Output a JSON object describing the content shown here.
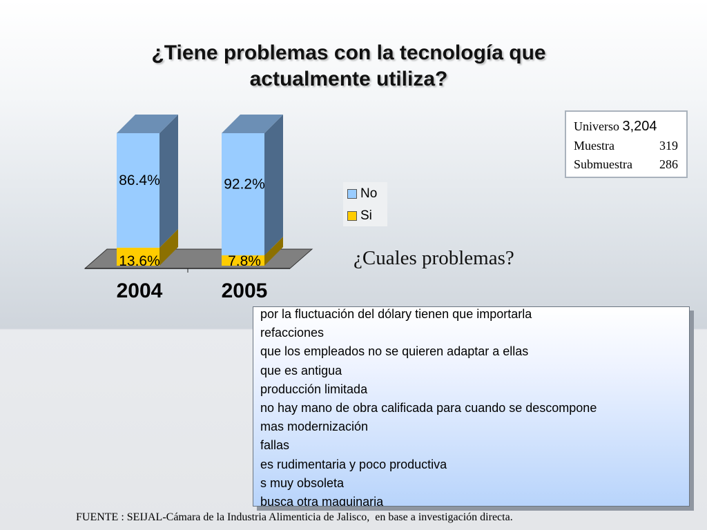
{
  "title_lines": [
    "¿Tiene problemas con la tecnología que",
    "actualmente utiliza?"
  ],
  "chart_data": {
    "type": "bar",
    "stacked": true,
    "three_d": true,
    "categories": [
      "2004",
      "2005"
    ],
    "series": [
      {
        "name": "No",
        "values": [
          86.4,
          92.2
        ],
        "labels": [
          "86.4%",
          "92.2%"
        ],
        "color": "#99ccff"
      },
      {
        "name": "Si",
        "values": [
          13.6,
          7.8
        ],
        "labels": [
          "13.6%",
          "7.8%"
        ],
        "color": "#ffcc00"
      }
    ],
    "ylim": [
      0,
      100
    ],
    "grid": false,
    "legend_position": "right"
  },
  "stats": {
    "universo_label": "Universo",
    "universo_value": "3,204",
    "muestra_label": "Muestra",
    "muestra_value": "319",
    "submuestra_label": "Submuestra",
    "submuestra_value": "286"
  },
  "question": "¿Cuales problemas?",
  "problems": [
    "por la fluctuación del dólary tienen que importarla",
    "refacciones",
    "que los empleados no se quieren adaptar a ellas",
    "que es antigua",
    "producción limitada",
    "no hay mano de obra calificada para cuando se descompone",
    "mas modernización",
    "fallas",
    "es rudimentaria y poco productiva",
    "s muy obsoleta",
    "busca otra maquinaria"
  ],
  "source": "FUENTE : SEIJAL-Cámara de la Industria Alimenticia de Jalisco,  en base a investigación directa."
}
